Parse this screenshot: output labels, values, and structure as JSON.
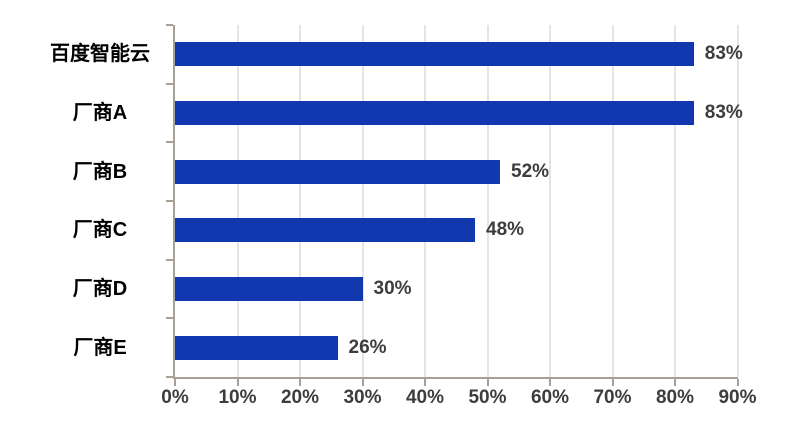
{
  "chart_data": {
    "type": "bar",
    "orientation": "horizontal",
    "title": "",
    "categories": [
      "百度智能云",
      "厂商A",
      "厂商B",
      "厂商C",
      "厂商D",
      "厂商E"
    ],
    "values": [
      83,
      83,
      52,
      48,
      30,
      26
    ],
    "value_labels": [
      "83%",
      "83%",
      "52%",
      "48%",
      "30%",
      "26%"
    ],
    "x_ticks": [
      "0%",
      "10%",
      "20%",
      "30%",
      "40%",
      "50%",
      "60%",
      "70%",
      "80%",
      "90%"
    ],
    "x_tick_values": [
      0,
      10,
      20,
      30,
      40,
      50,
      60,
      70,
      80,
      90
    ],
    "xlim": [
      0,
      90
    ],
    "grid": true,
    "legend": "none",
    "colors": {
      "bar": "#1138AE",
      "axis": "#A89F96",
      "gridline": "#E4E4E4",
      "category_label": "#000000",
      "value_label": "#3D3D3D",
      "tick_label": "#3D3D3D",
      "background": "#FFFFFF"
    }
  }
}
